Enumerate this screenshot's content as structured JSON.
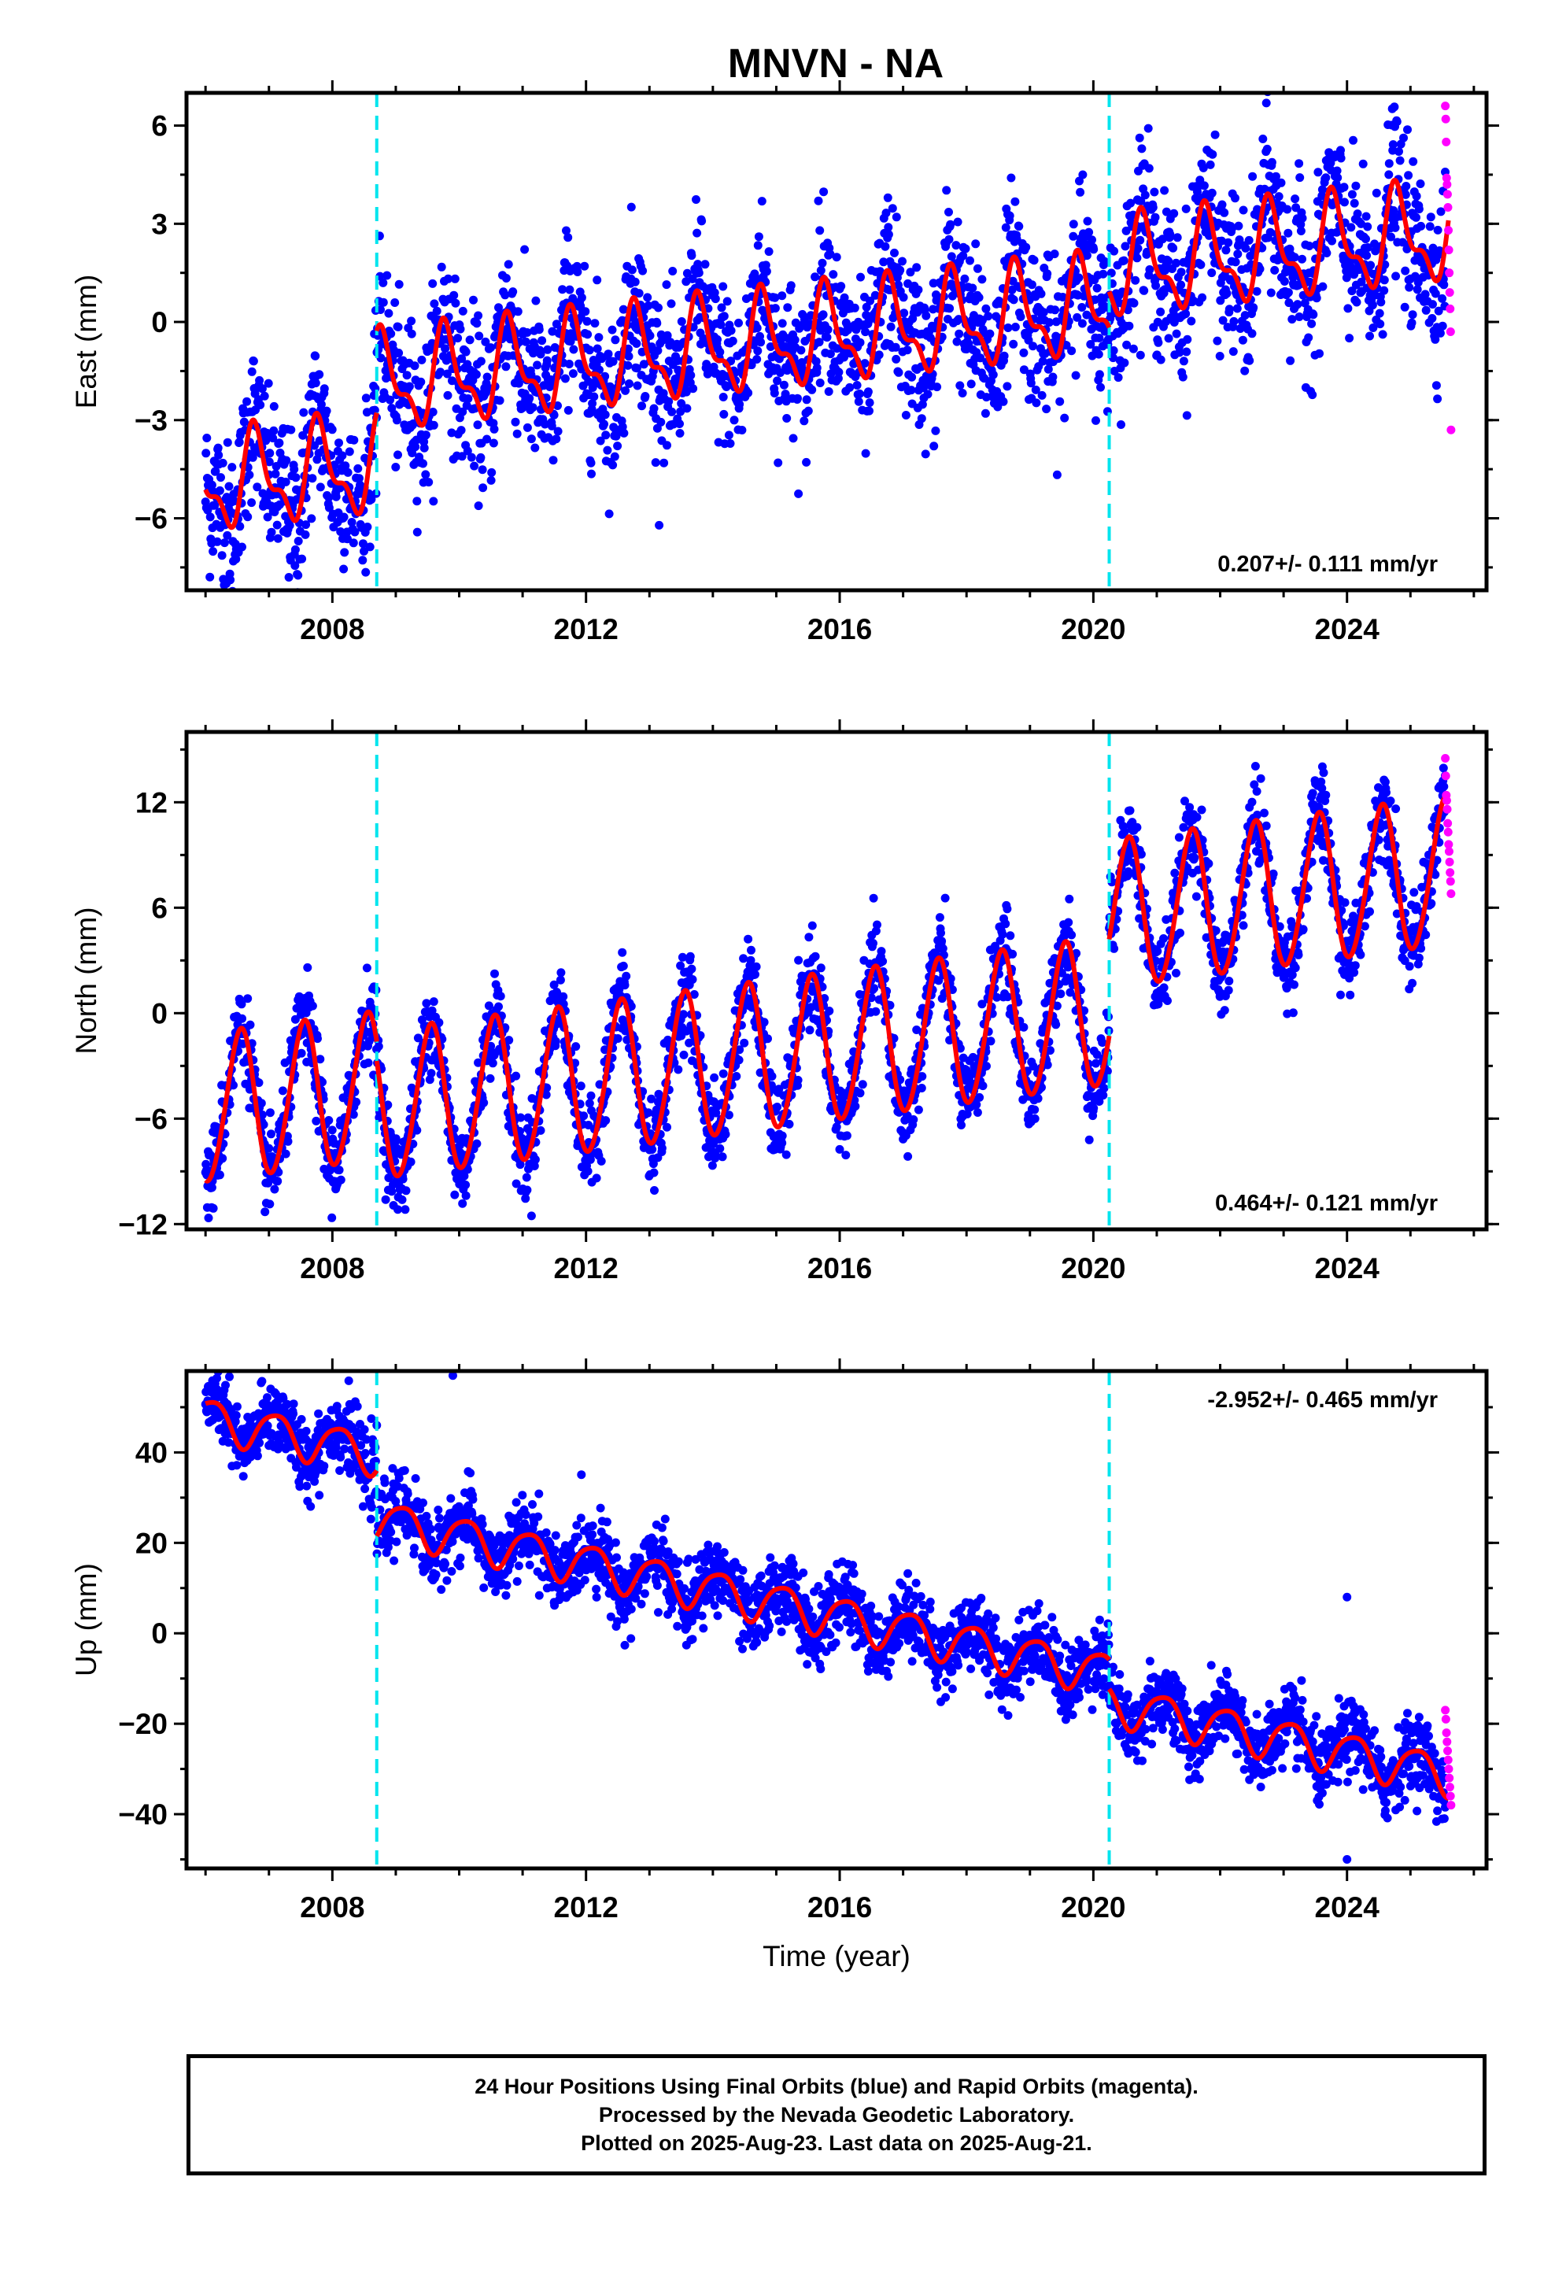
{
  "title": "MNVN - NA",
  "chart_data": [
    {
      "type": "scatter",
      "panel": "east",
      "ylabel": "East (mm)",
      "xlabel": "",
      "xlim": [
        2005.7,
        2026.2
      ],
      "ylim": [
        -8.2,
        7.0
      ],
      "xticks": [
        2008,
        2012,
        2016,
        2020,
        2024
      ],
      "yticks": [
        -6,
        -3,
        0,
        3,
        6
      ],
      "rate_label": "0.207+/- 0.111 mm/yr",
      "rate_position": "bottom-right",
      "breaks": [
        2008.7,
        2020.25
      ],
      "model": {
        "segments": [
          {
            "x0": 2006.0,
            "x1": 2008.7,
            "offset": -3.3
          },
          {
            "x0": 2008.7,
            "x1": 2020.25,
            "offset": -0.8
          },
          {
            "x0": 2020.25,
            "x1": 2025.6,
            "offset": 0.3
          }
        ],
        "rate": 0.207,
        "ref_year": 2014.0,
        "annual_amp": 1.3,
        "annual_phase": 0.55,
        "semiannual_amp": 0.6,
        "semiannual_phase": 0.1,
        "scatter_sd": 1.2
      },
      "series": [
        {
          "name": "Final Orbits",
          "color": "#0000ff",
          "x_range": [
            2006.0,
            2025.55
          ],
          "role": "points"
        },
        {
          "name": "Rapid Orbits",
          "color": "#ff00ff",
          "x_range": [
            2025.55,
            2025.64
          ],
          "role": "points",
          "y_values": [
            6.6,
            6.2,
            5.5,
            4.4,
            4.2,
            3.9,
            3.5,
            2.8,
            2.2,
            1.5,
            0.9,
            0.4,
            -0.3,
            -3.3
          ]
        },
        {
          "name": "Model",
          "color": "#ff0000",
          "role": "line"
        }
      ]
    },
    {
      "type": "scatter",
      "panel": "north",
      "ylabel": "North (mm)",
      "xlabel": "",
      "xlim": [
        2005.7,
        2026.2
      ],
      "ylim": [
        -12.3,
        16.0
      ],
      "xticks": [
        2008,
        2012,
        2016,
        2020,
        2024
      ],
      "yticks": [
        -12,
        -6,
        0,
        6,
        12
      ],
      "rate_label": "0.464+/- 0.121 mm/yr",
      "rate_position": "bottom-right",
      "breaks": [
        2008.7,
        2020.25
      ],
      "model": {
        "segments": [
          {
            "x0": 2006.0,
            "x1": 2008.7,
            "offset": -1.8
          },
          {
            "x0": 2008.7,
            "x1": 2020.25,
            "offset": -2.9
          },
          {
            "x0": 2020.25,
            "x1": 2025.6,
            "offset": 2.6
          }
        ],
        "rate": 0.464,
        "ref_year": 2014.0,
        "annual_amp": 4.2,
        "annual_phase": 0.3,
        "semiannual_amp": 0.3,
        "semiannual_phase": 0.0,
        "scatter_sd": 1.2
      },
      "series": [
        {
          "name": "Final Orbits",
          "color": "#0000ff",
          "x_range": [
            2006.0,
            2025.55
          ],
          "role": "points"
        },
        {
          "name": "Rapid Orbits",
          "color": "#ff00ff",
          "x_range": [
            2025.55,
            2025.64
          ],
          "role": "points",
          "y_values": [
            14.5,
            13.5,
            12.4,
            12.1,
            11.6,
            10.8,
            10.3,
            9.6,
            9.2,
            8.6,
            8.0,
            7.5,
            6.8
          ]
        },
        {
          "name": "Model",
          "color": "#ff0000",
          "role": "line"
        }
      ]
    },
    {
      "type": "scatter",
      "panel": "up",
      "ylabel": "Up (mm)",
      "xlabel": "Time (year)",
      "xlim": [
        2005.7,
        2026.2
      ],
      "ylim": [
        -52,
        58
      ],
      "xticks": [
        2008,
        2012,
        2016,
        2020,
        2024
      ],
      "yticks": [
        -40,
        -20,
        0,
        20,
        40
      ],
      "rate_label": "-2.952+/- 0.465 mm/yr",
      "rate_position": "top-right",
      "breaks": [
        2008.7,
        2020.25
      ],
      "model": {
        "segments": [
          {
            "x0": 2006.0,
            "x1": 2008.7,
            "offset": 24.0
          },
          {
            "x0": 2008.7,
            "x1": 2020.25,
            "offset": 9.5
          },
          {
            "x0": 2020.25,
            "x1": 2025.6,
            "offset": 3.0
          }
        ],
        "rate": -2.952,
        "ref_year": 2014.0,
        "annual_amp": 4.5,
        "annual_phase": 0.85,
        "semiannual_amp": 0.8,
        "semiannual_phase": 0.2,
        "scatter_sd": 4.0
      },
      "series": [
        {
          "name": "Final Orbits",
          "color": "#0000ff",
          "x_range": [
            2006.0,
            2025.55
          ],
          "role": "points"
        },
        {
          "name": "Rapid Orbits",
          "color": "#ff00ff",
          "x_range": [
            2025.55,
            2025.64
          ],
          "role": "points",
          "y_values": [
            -17,
            -19,
            -22,
            -24,
            -26,
            -28,
            -30,
            -32,
            -34,
            -36,
            -38
          ]
        },
        {
          "name": "Model",
          "color": "#ff0000",
          "role": "line"
        }
      ],
      "outliers": [
        [
          2008.7,
          46
        ],
        [
          2009.9,
          57
        ],
        [
          2024.0,
          8
        ],
        [
          2024.0,
          -50
        ]
      ]
    }
  ],
  "footer": {
    "line1": "24 Hour Positions Using Final Orbits (blue) and Rapid Orbits (magenta).",
    "line2": "Processed by the Nevada Geodetic Laboratory.",
    "line3": "Plotted on 2025-Aug-23. Last data on 2025-Aug-21."
  },
  "colors": {
    "final_points": "#0000ff",
    "rapid_points": "#ff00ff",
    "model_line": "#ff0000",
    "break_line": "#00e5ee",
    "frame": "#000000"
  }
}
